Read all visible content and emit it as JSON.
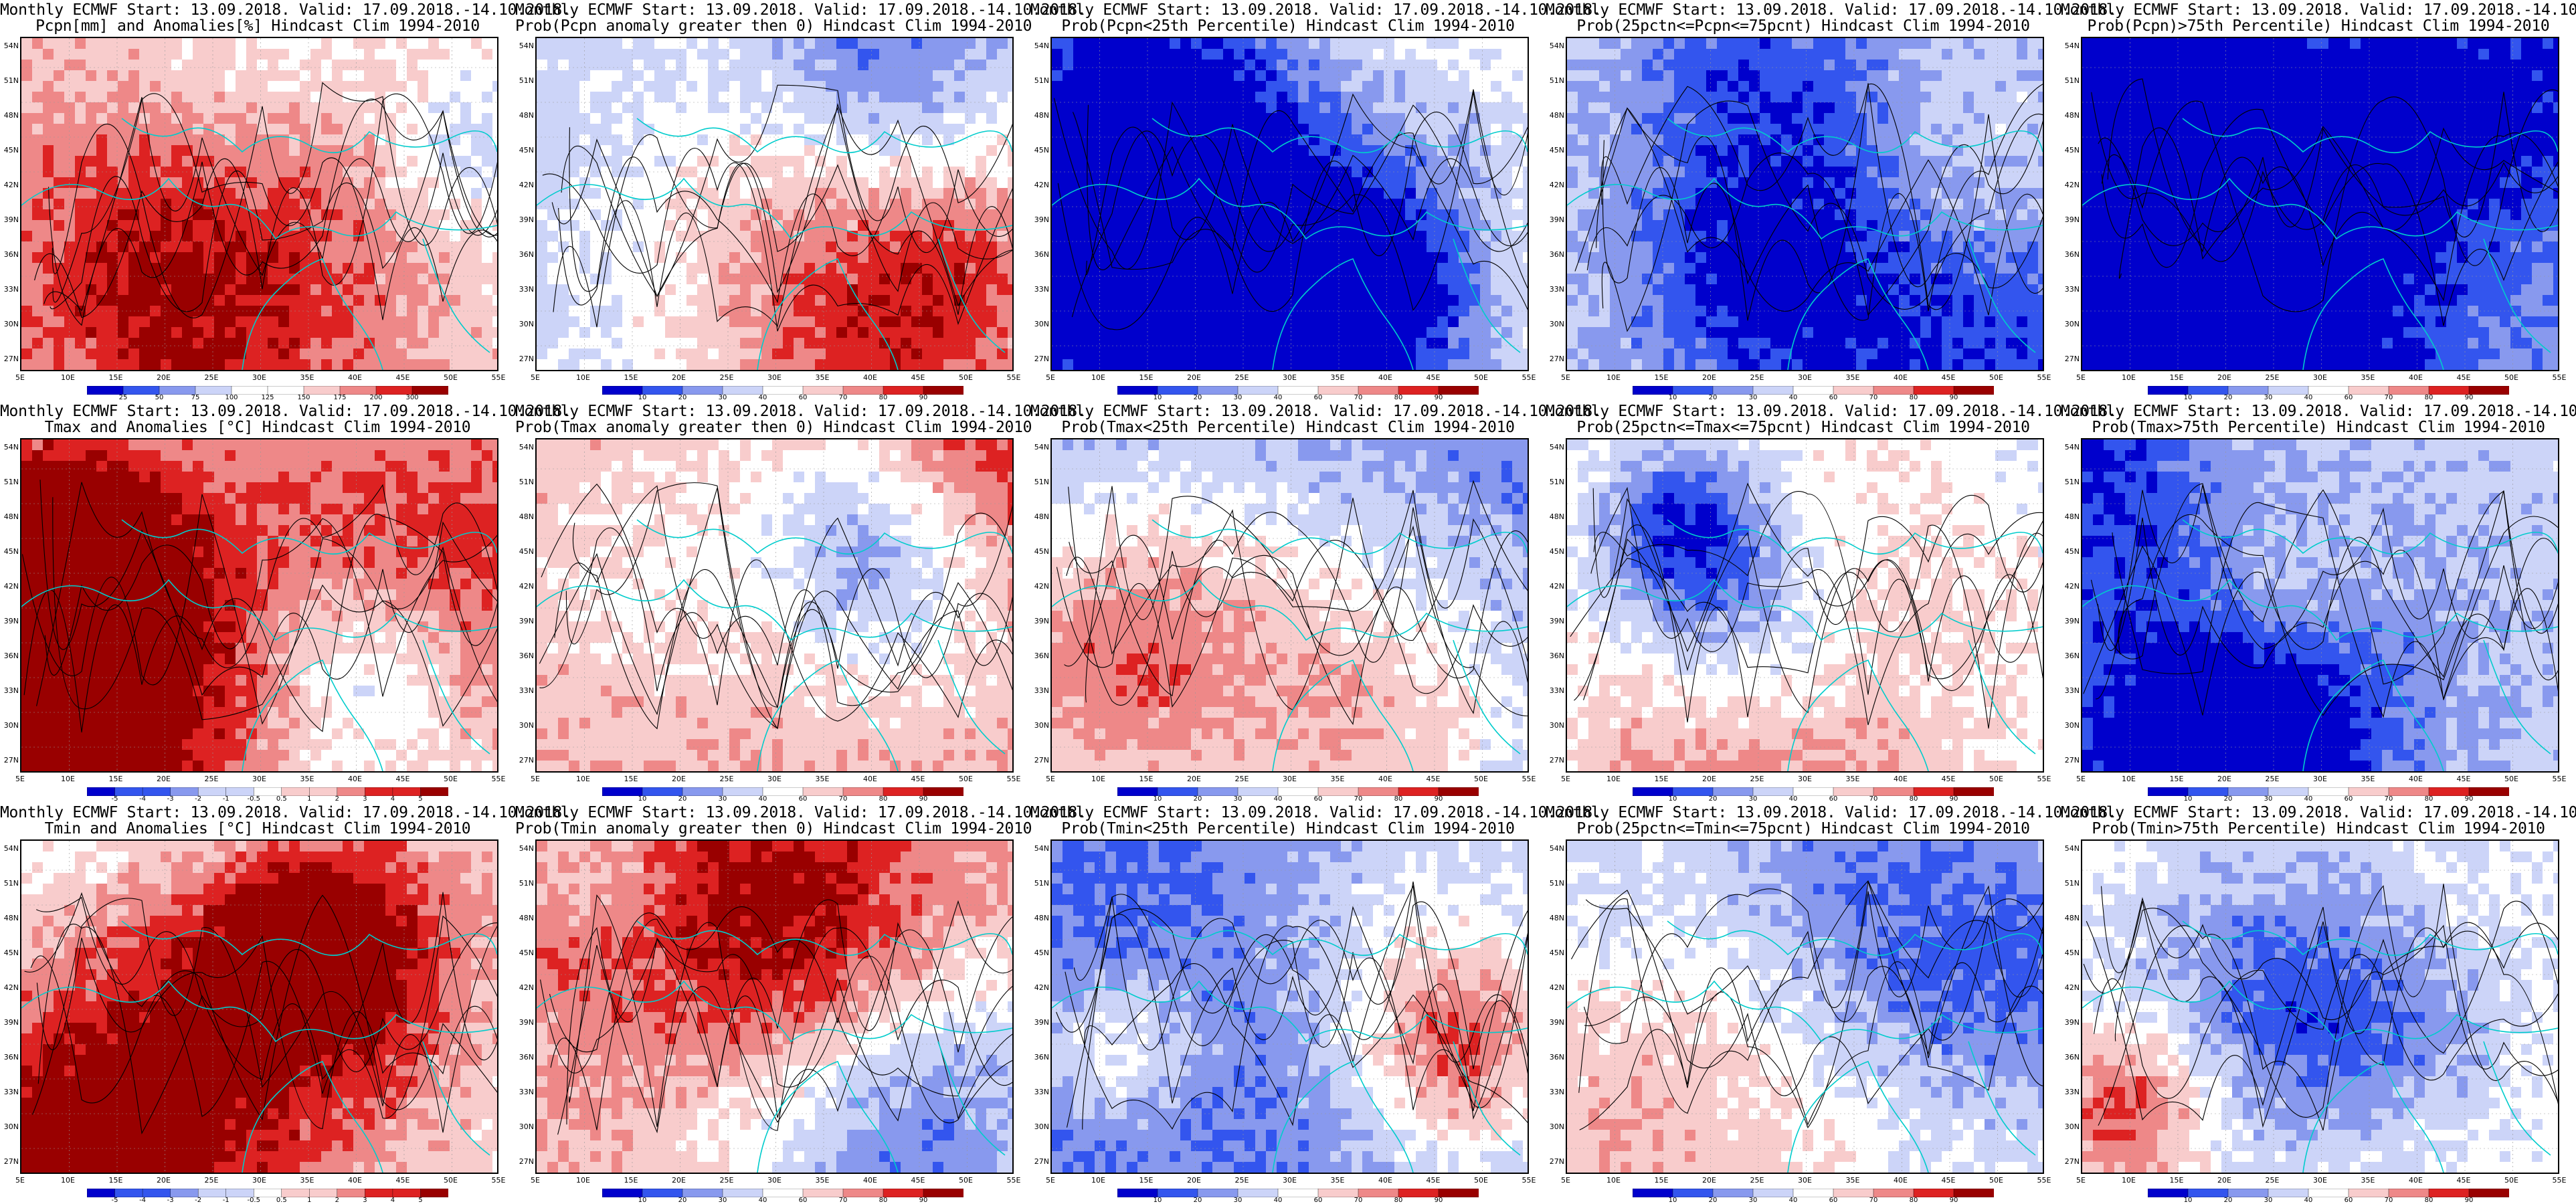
{
  "header_line": "Monthly ECMWF Start: 13.09.2018. Valid: 17.09.2018.-14.10.2018.",
  "clim": "Hindcast Clim 1994-2010",
  "lat_labels": [
    "54N",
    "51N",
    "48N",
    "45N",
    "42N",
    "39N",
    "36N",
    "33N",
    "30N",
    "27N"
  ],
  "lon_labels": [
    "5E",
    "10E",
    "15E",
    "20E",
    "25E",
    "30E",
    "35E",
    "40E",
    "45E",
    "50E",
    "55E"
  ],
  "colorbars": {
    "pcpn_anom": [
      "25",
      "50",
      "75",
      "100",
      "125",
      "150",
      "175",
      "200",
      "300"
    ],
    "prob": [
      "10",
      "20",
      "30",
      "40",
      "60",
      "70",
      "80",
      "90"
    ],
    "temp_anom": [
      "-5",
      "-4",
      "-3",
      "-2",
      "-1",
      "-0.5",
      "0.5",
      "1",
      "2",
      "3",
      "4",
      "5"
    ]
  },
  "colors": {
    "deep_blue": "#0000cc",
    "mid_blue": "#3355ee",
    "light_blue": "#8899ee",
    "pale_blue": "#ccd4f8",
    "white": "#ffffff",
    "pale_red": "#f8cccc",
    "light_red": "#ee8888",
    "mid_red": "#dd2222",
    "deep_red": "#990000",
    "contour": "#000000",
    "coast": "#00cccc"
  },
  "panels": [
    {
      "title": "Pcpn[mm] and Anomalies[%] Hindcast Clim 1994-2010",
      "bar": "pcpn_anom",
      "bias": 0.25
    },
    {
      "title": "Prob(Pcpn anomaly greater then 0) Hindcast Clim 1994-2010",
      "bar": "prob",
      "bias": -0.35
    },
    {
      "title": "Prob(Pcpn<25th Percentile) Hindcast Clim 1994-2010",
      "bar": "prob",
      "bias": 0.15
    },
    {
      "title": "Prob(25pctn<=Pcpn<=75pcnt) Hindcast Clim 1994-2010",
      "bar": "prob",
      "bias": -0.4
    },
    {
      "title": "Prob(Pcpn)>75th Percentile) Hindcast Clim 1994-2010",
      "bar": "prob",
      "bias": -0.55
    },
    {
      "title": "Tmax and Anomalies [°C] Hindcast Clim 1994-2010",
      "bar": "temp_anom",
      "bias": 0.05
    },
    {
      "title": "Prob(Tmax anomaly greater then 0) Hindcast Clim 1994-2010",
      "bar": "prob",
      "bias": 0.45
    },
    {
      "title": "Prob(Tmax<25th Percentile) Hindcast Clim 1994-2010",
      "bar": "prob",
      "bias": -0.8
    },
    {
      "title": "Prob(25pctn<=Tmax<=75pcnt) Hindcast Clim 1994-2010",
      "bar": "prob",
      "bias": -0.2
    },
    {
      "title": "Prob(Tmax>75th Percentile) Hindcast Clim 1994-2010",
      "bar": "prob",
      "bias": -0.3
    },
    {
      "title": "Tmin and Anomalies [°C] Hindcast Clim 1994-2010",
      "bar": "temp_anom",
      "bias": 0.1
    },
    {
      "title": "Prob(Tmin anomaly greater then 0) Hindcast Clim 1994-2010",
      "bar": "prob",
      "bias": 0.5
    },
    {
      "title": "Prob(Tmin<25th Percentile) Hindcast Clim 1994-2010",
      "bar": "prob",
      "bias": -0.85
    },
    {
      "title": "Prob(25pctn<=Tmin<=75pcnt) Hindcast Clim 1994-2010",
      "bar": "prob",
      "bias": -0.15
    },
    {
      "title": "Prob(Tmin>75th Percentile) Hindcast Clim 1994-2010",
      "bar": "prob",
      "bias": -0.25
    }
  ]
}
